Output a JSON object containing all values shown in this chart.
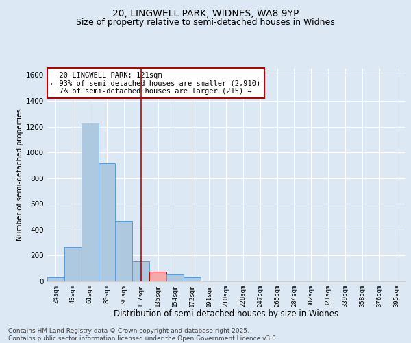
{
  "title_line1": "20, LINGWELL PARK, WIDNES, WA8 9YP",
  "title_line2": "Size of property relative to semi-detached houses in Widnes",
  "xlabel": "Distribution of semi-detached houses by size in Widnes",
  "ylabel": "Number of semi-detached properties",
  "footer_line1": "Contains HM Land Registry data © Crown copyright and database right 2025.",
  "footer_line2": "Contains public sector information licensed under the Open Government Licence v3.0.",
  "annotation_line1": "  20 LINGWELL PARK: 121sqm",
  "annotation_line2": "← 93% of semi-detached houses are smaller (2,910)",
  "annotation_line3": "  7% of semi-detached houses are larger (215) →",
  "bar_labels": [
    "24sqm",
    "43sqm",
    "61sqm",
    "80sqm",
    "98sqm",
    "117sqm",
    "135sqm",
    "154sqm",
    "172sqm",
    "191sqm",
    "210sqm",
    "228sqm",
    "247sqm",
    "265sqm",
    "284sqm",
    "302sqm",
    "321sqm",
    "339sqm",
    "358sqm",
    "376sqm",
    "395sqm"
  ],
  "bar_values": [
    30,
    265,
    1230,
    915,
    470,
    155,
    75,
    55,
    30,
    0,
    0,
    0,
    0,
    0,
    0,
    0,
    0,
    0,
    0,
    0,
    0
  ],
  "bar_color": "#aec8e0",
  "bar_edge_color": "#5b9bd5",
  "highlight_bar_index": 6,
  "highlight_bar_color": "#f4aaaa",
  "highlight_bar_edge_color": "#c00000",
  "vline_x_index": 5,
  "vline_color": "#c00000",
  "ylim": [
    0,
    1650
  ],
  "yticks": [
    0,
    200,
    400,
    600,
    800,
    1000,
    1200,
    1400,
    1600
  ],
  "background_color": "#dce9f5",
  "plot_background_color": "#dce9f5",
  "grid_color": "#ffffff",
  "title_fontsize": 10,
  "subtitle_fontsize": 9,
  "annotation_fontsize": 7.5,
  "footer_fontsize": 6.5,
  "annotation_box_color": "#ffffff",
  "annotation_box_edge_color": "#c00000"
}
